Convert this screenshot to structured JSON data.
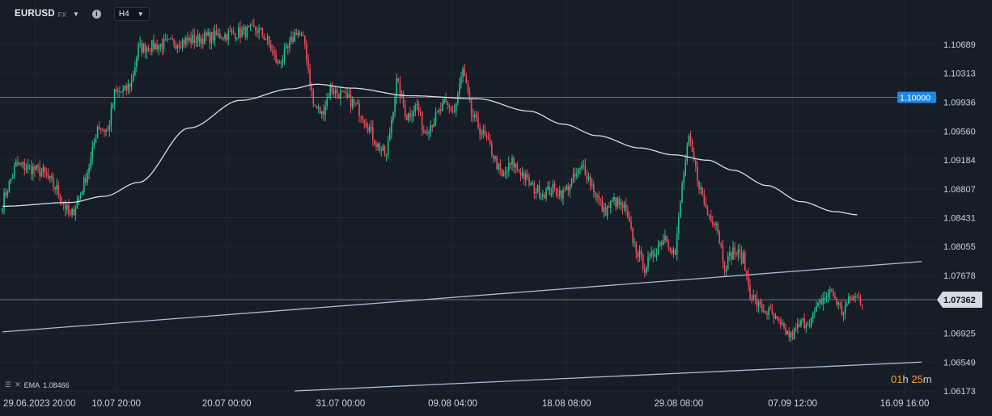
{
  "header": {
    "symbol": "EURUSD",
    "exchange": "FX",
    "timeframe": "H4"
  },
  "indicator": {
    "name": "EMA",
    "value": "1.08466"
  },
  "countdown": {
    "hours": "01",
    "hours_unit": "h",
    "minutes": "25",
    "minutes_unit": "m"
  },
  "colors": {
    "background": "#161d27",
    "up_candle": "#26c08a",
    "down_candle": "#ef4b57",
    "ema": "#d9dde2",
    "hline_blue": "#2f7fd8",
    "trendline": "#a9bfd9",
    "price_label_gray": "#d5dae0",
    "price_label_blue": "#1e88e5"
  },
  "chart_data": {
    "type": "candlestick",
    "title": "",
    "xlabel": "",
    "ylabel": "",
    "ylim": [
      1.0617,
      1.1103
    ],
    "y_ticks": [
      "1.10689",
      "1.10313",
      "1.09936",
      "1.09560",
      "1.09184",
      "1.08807",
      "1.08431",
      "1.08055",
      "1.07678",
      "1.07362",
      "1.06925",
      "1.06549",
      "1.06173"
    ],
    "x_ticks": [
      "29.06.2023  20:00",
      "10.07  20:00",
      "20.07  00:00",
      "31.07  00:00",
      "09.08  04:00",
      "18.08  08:00",
      "29.08  08:00",
      "07.09  12:00",
      "16.09  16:00"
    ],
    "x_tick_index": [
      0,
      67,
      132,
      199,
      265,
      332,
      398,
      465,
      531
    ],
    "close_path": [
      [
        0,
        1.0863
      ],
      [
        8,
        1.0912
      ],
      [
        16,
        1.0908
      ],
      [
        24,
        1.0902
      ],
      [
        32,
        1.088
      ],
      [
        40,
        1.0843
      ],
      [
        46,
        1.0874
      ],
      [
        52,
        1.0918
      ],
      [
        56,
        1.0963
      ],
      [
        62,
        1.0955
      ],
      [
        66,
        1.1005
      ],
      [
        72,
        1.1008
      ],
      [
        76,
        1.102
      ],
      [
        80,
        1.1064
      ],
      [
        150,
        1.1088
      ],
      [
        155,
        1.1078
      ],
      [
        162,
        1.1043
      ],
      [
        168,
        1.1062
      ],
      [
        173,
        1.1087
      ],
      [
        178,
        1.107
      ],
      [
        183,
        1.099
      ],
      [
        188,
        1.0978
      ],
      [
        193,
        1.1012
      ],
      [
        200,
        1.1002
      ],
      [
        206,
        1.0993
      ],
      [
        212,
        1.0978
      ],
      [
        220,
        1.094
      ],
      [
        226,
        1.0923
      ],
      [
        232,
        1.102
      ],
      [
        238,
        1.0975
      ],
      [
        244,
        1.099
      ],
      [
        248,
        1.0955
      ],
      [
        254,
        1.097
      ],
      [
        260,
        1.099
      ],
      [
        266,
        1.0982
      ],
      [
        271,
        1.1035
      ],
      [
        276,
        1.0978
      ],
      [
        282,
        1.0955
      ],
      [
        288,
        1.093
      ],
      [
        294,
        1.0895
      ],
      [
        300,
        1.0915
      ],
      [
        306,
        1.09
      ],
      [
        312,
        1.0882
      ],
      [
        318,
        1.0875
      ],
      [
        324,
        1.088
      ],
      [
        330,
        1.0875
      ],
      [
        336,
        1.0893
      ],
      [
        342,
        1.091
      ],
      [
        348,
        1.088
      ],
      [
        354,
        1.085
      ],
      [
        360,
        1.0865
      ],
      [
        366,
        1.0855
      ],
      [
        372,
        1.0808
      ],
      [
        378,
        1.0778
      ],
      [
        384,
        1.08
      ],
      [
        390,
        1.082
      ],
      [
        396,
        1.0795
      ],
      [
        400,
        1.0885
      ],
      [
        404,
        1.0945
      ],
      [
        410,
        1.0887
      ],
      [
        415,
        1.0848
      ],
      [
        420,
        1.0838
      ],
      [
        425,
        1.078
      ],
      [
        430,
        1.08
      ],
      [
        436,
        1.079
      ],
      [
        440,
        1.0745
      ],
      [
        446,
        1.0725
      ],
      [
        452,
        1.0718
      ],
      [
        458,
        1.07
      ],
      [
        464,
        1.0688
      ],
      [
        470,
        1.0705
      ],
      [
        476,
        1.071
      ],
      [
        482,
        1.0735
      ],
      [
        488,
        1.0748
      ],
      [
        494,
        1.072
      ],
      [
        500,
        1.074
      ],
      [
        506,
        1.0735
      ]
    ],
    "ema_path": [
      [
        0,
        1.0858
      ],
      [
        40,
        1.0863
      ],
      [
        60,
        1.0871
      ],
      [
        80,
        1.0889
      ],
      [
        110,
        1.096
      ],
      [
        140,
        1.0996
      ],
      [
        170,
        1.1011
      ],
      [
        185,
        1.1017
      ],
      [
        205,
        1.1012
      ],
      [
        240,
        1.1002
      ],
      [
        280,
        1.0998
      ],
      [
        310,
        1.0982
      ],
      [
        330,
        1.0965
      ],
      [
        350,
        1.095
      ],
      [
        375,
        1.0934
      ],
      [
        395,
        1.0925
      ],
      [
        415,
        1.0918
      ],
      [
        430,
        1.0905
      ],
      [
        450,
        1.0885
      ],
      [
        470,
        1.0864
      ],
      [
        490,
        1.0851
      ],
      [
        503,
        1.0847
      ]
    ],
    "horizontal_lines": [
      {
        "price": 1.1,
        "label": "1.10000",
        "color": "blue"
      },
      {
        "price": 1.07362,
        "label": "1.07362",
        "color": "gray"
      }
    ],
    "trendlines": [
      {
        "from": [
          0,
          1.06943
        ],
        "to": [
          541,
          1.0786
        ]
      },
      {
        "from": [
          172,
          1.06173
        ],
        "to": [
          541,
          1.06549
        ]
      }
    ],
    "grid": true
  }
}
